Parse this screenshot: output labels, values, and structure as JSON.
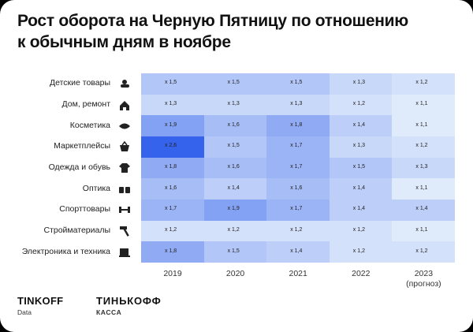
{
  "chart_data": {
    "type": "heatmap",
    "title": "Рост оборота на Черную Пятницу по отношению\nк обычным дням в ноябре",
    "x": [
      "2019",
      "2020",
      "2021",
      "2022",
      "2023\n(прогноз)"
    ],
    "y": [
      "Детские товары",
      "Дом, ремонт",
      "Косметика",
      "Маркетплейсы",
      "Одежда и обувь",
      "Оптика",
      "Спорттовары",
      "Стройматериалы",
      "Электроника и техника"
    ],
    "values": [
      [
        1.5,
        1.5,
        1.5,
        1.3,
        1.2
      ],
      [
        1.3,
        1.3,
        1.3,
        1.2,
        1.1
      ],
      [
        1.9,
        1.6,
        1.8,
        1.4,
        1.1
      ],
      [
        2.6,
        1.5,
        1.7,
        1.3,
        1.2
      ],
      [
        1.8,
        1.6,
        1.7,
        1.5,
        1.3
      ],
      [
        1.6,
        1.4,
        1.6,
        1.4,
        1.1
      ],
      [
        1.7,
        1.9,
        1.7,
        1.4,
        1.4
      ],
      [
        1.2,
        1.2,
        1.2,
        1.2,
        1.1
      ],
      [
        1.8,
        1.5,
        1.4,
        1.2,
        1.2
      ]
    ],
    "value_labels": [
      [
        "x 1,5",
        "x 1,5",
        "x 1,5",
        "x 1,3",
        "x 1,2"
      ],
      [
        "x 1,3",
        "x 1,3",
        "x 1,3",
        "x 1,2",
        "x 1,1"
      ],
      [
        "x 1,9",
        "x 1,6",
        "x 1,8",
        "x 1,4",
        "x 1,1"
      ],
      [
        "x 2,6",
        "x 1,5",
        "x 1,7",
        "x 1,3",
        "x 1,2"
      ],
      [
        "x 1,8",
        "x 1,6",
        "x 1,7",
        "x 1,5",
        "x 1,3"
      ],
      [
        "x 1,6",
        "x 1,4",
        "x 1,6",
        "x 1,4",
        "x 1,1"
      ],
      [
        "x 1,7",
        "x 1,9",
        "x 1,7",
        "x 1,4",
        "x 1,4"
      ],
      [
        "x 1,2",
        "x 1,2",
        "x 1,2",
        "x 1,2",
        "x 1,1"
      ],
      [
        "x 1,8",
        "x 1,5",
        "x 1,4",
        "x 1,2",
        "x 1,2"
      ]
    ],
    "colors": [
      "#dfeafb",
      "#3563ec"
    ]
  },
  "footer": {
    "logo1": "TINKOFF",
    "logo1_sub": "Data",
    "logo2": "ТИНЬКОФФ",
    "logo2_sub": "КАССА"
  }
}
